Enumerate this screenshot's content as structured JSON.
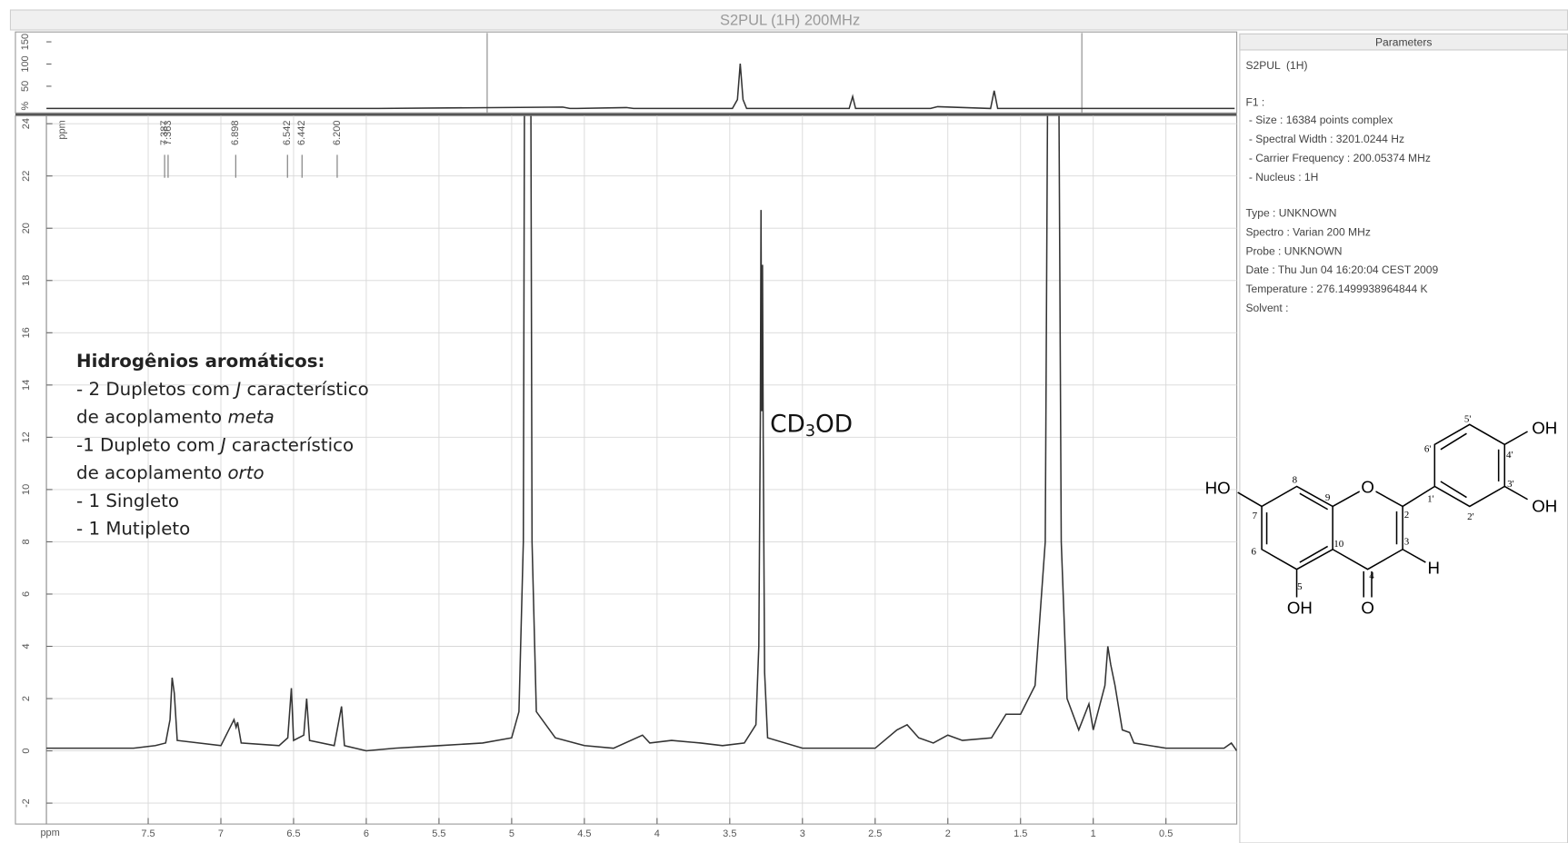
{
  "chart_data": [
    {
      "type": "line",
      "title": "S2PUL  (1H)  200MHz",
      "xlabel": "ppm",
      "x": [
        8.2,
        7.6,
        7.45,
        7.38,
        7.35,
        7.335,
        7.32,
        7.3,
        7.0,
        6.91,
        6.895,
        6.885,
        6.86,
        6.6,
        6.54,
        6.515,
        6.5,
        6.43,
        6.41,
        6.39,
        6.22,
        6.17,
        6.15,
        6.0,
        5.8,
        5.5,
        5.2,
        5.0,
        4.95,
        4.92,
        4.905,
        4.875,
        4.86,
        4.83,
        4.7,
        4.5,
        4.3,
        4.1,
        4.05,
        3.9,
        3.7,
        3.55,
        3.4,
        3.32,
        3.3,
        3.29,
        3.285,
        3.28,
        3.275,
        3.27,
        3.26,
        3.24,
        3.0,
        2.8,
        2.5,
        2.35,
        2.28,
        2.2,
        2.1,
        2.0,
        1.9,
        1.7,
        1.6,
        1.5,
        1.4,
        1.33,
        1.3,
        1.25,
        1.22,
        1.18,
        1.1,
        1.03,
        1.0,
        0.92,
        0.9,
        0.88,
        0.85,
        0.8,
        0.75,
        0.72,
        0.5,
        0.1,
        0.05,
        0.013
      ],
      "values": [
        0.1,
        0.1,
        0.2,
        0.3,
        1.2,
        2.8,
        2.2,
        0.4,
        0.2,
        1.2,
        0.9,
        1.1,
        0.3,
        0.2,
        0.5,
        2.4,
        0.4,
        0.6,
        2.0,
        0.4,
        0.2,
        1.7,
        0.2,
        0.0,
        0.1,
        0.2,
        0.3,
        0.5,
        1.5,
        8,
        40,
        40,
        8,
        1.5,
        0.5,
        0.2,
        0.1,
        0.6,
        0.3,
        0.4,
        0.3,
        0.2,
        0.3,
        1,
        4,
        12.5,
        20.7,
        13,
        18.6,
        12,
        3,
        0.5,
        0.1,
        0.1,
        0.1,
        0.8,
        1.0,
        0.5,
        0.3,
        0.6,
        0.4,
        0.5,
        1.4,
        1.4,
        2.5,
        8,
        40,
        40,
        8,
        2,
        0.8,
        1.8,
        0.8,
        2.5,
        4,
        3.3,
        2.5,
        0.8,
        0.7,
        0.3,
        0.1,
        0.1,
        0.3,
        0.0
      ],
      "color": "#333333",
      "xlim": [
        8.2,
        0.013
      ],
      "ylim": [
        -2.8,
        24.3
      ],
      "xticks": [
        7.5,
        7,
        6.5,
        6,
        5.5,
        5,
        4.5,
        4,
        3.5,
        3,
        2.5,
        2,
        1.5,
        1,
        0.5
      ],
      "yticks": [
        -2,
        0,
        2,
        4,
        6,
        8,
        10,
        12,
        14,
        16,
        18,
        20,
        22,
        24
      ],
      "grid": true,
      "peak_labels": [
        7.387,
        7.363,
        6.898,
        6.542,
        6.442,
        {
          "value": 6.2,
          "label": "6.200"
        }
      ],
      "annotations": [
        [
          "CD",
          "3",
          "OD"
        ]
      ]
    },
    {
      "type": "line",
      "ylabel": "%",
      "x": [
        14.7,
        10,
        7.4,
        7.3,
        7.2,
        6.5,
        6.4,
        6.2,
        5.0,
        4.93,
        4.89,
        4.85,
        4.8,
        3.35,
        3.3,
        3.26,
        2.2,
        2.1,
        1.35,
        1.3,
        1.25,
        -2.1
      ],
      "values": [
        0,
        0,
        3,
        0,
        0,
        2,
        0,
        0,
        0,
        20,
        101,
        20,
        0,
        0,
        27,
        0,
        0,
        4,
        0,
        40,
        0,
        0
      ],
      "color": "#333333",
      "xlim": [
        14.7,
        -2.13
      ],
      "ylim": [
        -10,
        170
      ],
      "yticks": [
        50,
        100,
        150
      ]
    }
  ],
  "parameters": {
    "header": "Parameters",
    "lines": [
      "S2PUL  (1H)",
      "F1 :",
      " - Size : 16384 points complex",
      " - Spectral Width : 3201.0244 Hz",
      " - Carrier Frequency : 200.05374 MHz",
      " - Nucleus : 1H",
      "Type : UNKNOWN",
      "Spectro : Varian 200 MHz",
      "Probe : UNKNOWN",
      "Date : Thu Jun 04 16:20:04 CEST 2009",
      "Temperature : 276.1499938964844 K",
      "Solvent :"
    ]
  },
  "note": {
    "lines": [
      [
        "Hidrogênios aromáticos:"
      ],
      [
        "- 2 Dupletos com ",
        "J",
        " característico"
      ],
      [
        "de acoplamento ",
        "meta"
      ],
      [
        "-1 Dupleto com ",
        "J",
        " característico"
      ],
      [
        "de acoplamento ",
        "orto"
      ],
      [
        "- 1 Singleto"
      ],
      [
        "- 1 Mutipleto"
      ]
    ]
  },
  "structure": {
    "atoms": [
      "HO",
      "OH",
      "O",
      "O",
      "H",
      "OH",
      "OH"
    ],
    "numbers": [
      "8",
      "9",
      "2",
      "3",
      "4",
      "10",
      "5",
      "6",
      "7",
      "1'",
      "2'",
      "3'",
      "4'",
      "5'",
      "6'"
    ]
  }
}
